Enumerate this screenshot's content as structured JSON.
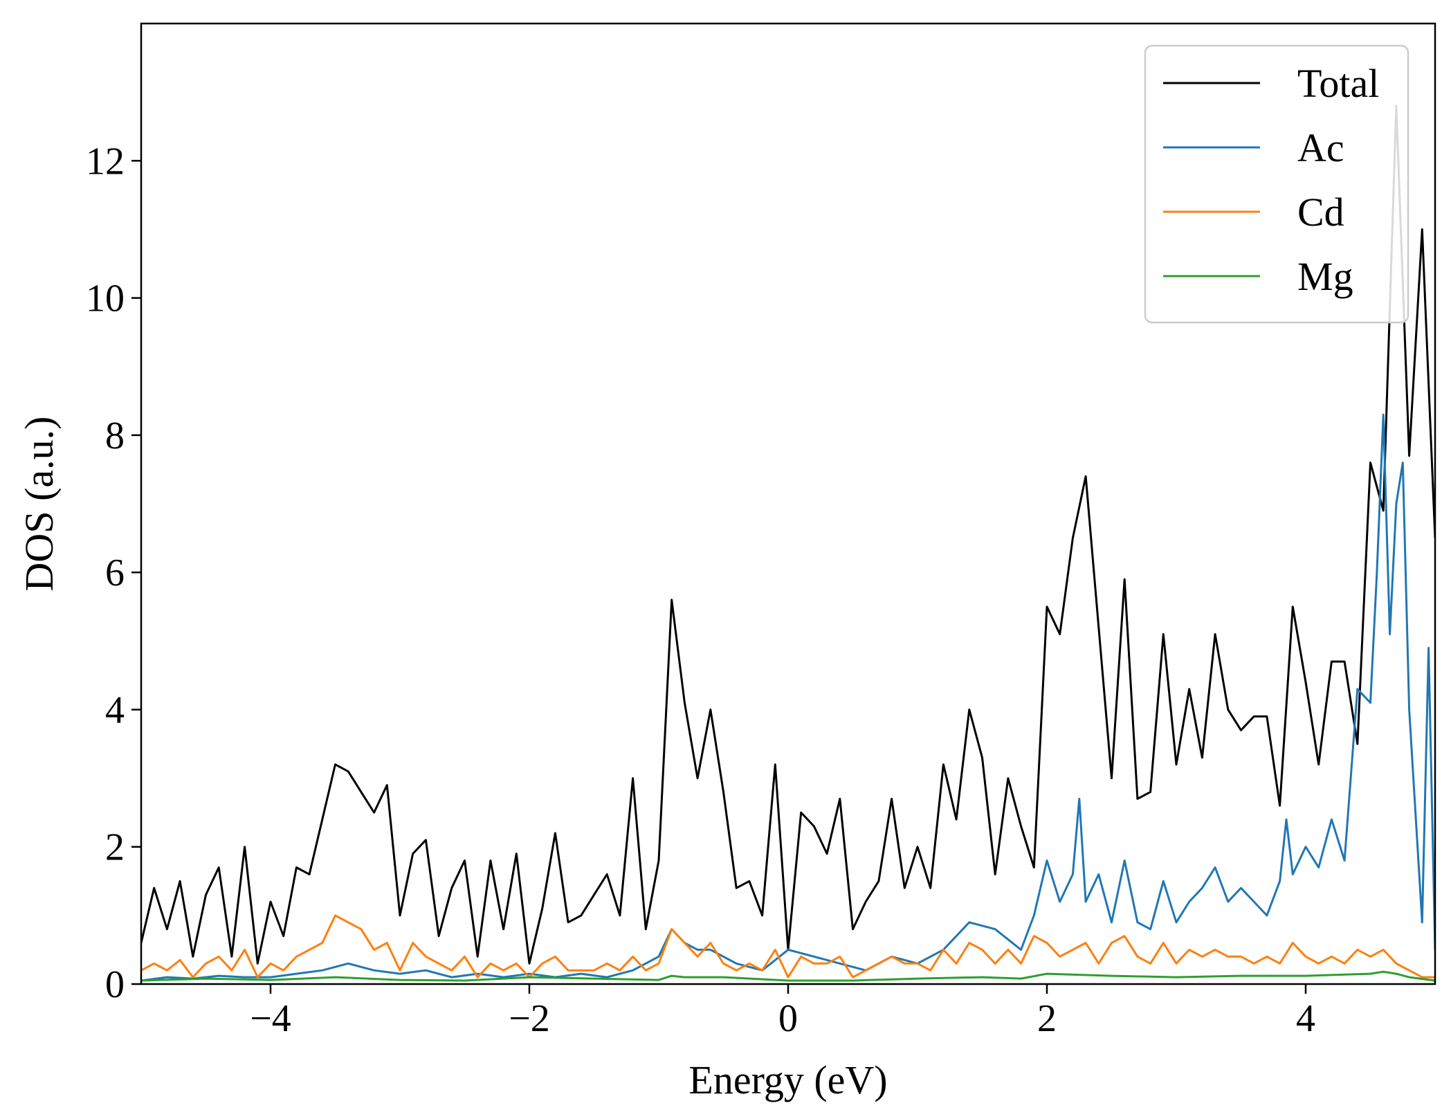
{
  "chart_data": {
    "type": "line",
    "title": "",
    "xlabel": "Energy (eV)",
    "ylabel": "DOS (a.u.)",
    "xlim": [
      -5,
      5
    ],
    "ylim": [
      0,
      14
    ],
    "x_ticks": [
      -4,
      -2,
      0,
      2,
      4
    ],
    "x_tick_labels": [
      "−4",
      "−2",
      "0",
      "2",
      "4"
    ],
    "y_ticks": [
      0,
      2,
      4,
      6,
      8,
      10,
      12
    ],
    "y_tick_labels": [
      "0",
      "2",
      "4",
      "6",
      "8",
      "10",
      "12"
    ],
    "legend_position": "top-right",
    "series": [
      {
        "name": "Total",
        "color": "#000000",
        "x": [
          -5.0,
          -4.9,
          -4.8,
          -4.7,
          -4.6,
          -4.5,
          -4.4,
          -4.3,
          -4.2,
          -4.1,
          -4.0,
          -3.9,
          -3.8,
          -3.7,
          -3.6,
          -3.5,
          -3.4,
          -3.3,
          -3.2,
          -3.1,
          -3.0,
          -2.9,
          -2.8,
          -2.7,
          -2.6,
          -2.5,
          -2.4,
          -2.3,
          -2.2,
          -2.1,
          -2.0,
          -1.9,
          -1.8,
          -1.7,
          -1.6,
          -1.5,
          -1.4,
          -1.3,
          -1.2,
          -1.1,
          -1.0,
          -0.9,
          -0.8,
          -0.7,
          -0.6,
          -0.5,
          -0.4,
          -0.3,
          -0.2,
          -0.1,
          0.0,
          0.1,
          0.2,
          0.3,
          0.4,
          0.5,
          0.6,
          0.7,
          0.8,
          0.9,
          1.0,
          1.1,
          1.2,
          1.3,
          1.4,
          1.5,
          1.6,
          1.7,
          1.8,
          1.9,
          2.0,
          2.1,
          2.2,
          2.3,
          2.4,
          2.5,
          2.6,
          2.7,
          2.8,
          2.9,
          3.0,
          3.1,
          3.2,
          3.3,
          3.4,
          3.5,
          3.6,
          3.7,
          3.8,
          3.9,
          4.0,
          4.1,
          4.2,
          4.3,
          4.4,
          4.5,
          4.6,
          4.7,
          4.8,
          4.9,
          5.0
        ],
        "values": [
          0.6,
          1.4,
          0.8,
          1.5,
          0.4,
          1.3,
          1.7,
          0.4,
          2.0,
          0.3,
          1.2,
          0.7,
          1.7,
          1.6,
          2.4,
          3.2,
          3.1,
          2.8,
          2.5,
          2.9,
          1.0,
          1.9,
          2.1,
          0.7,
          1.4,
          1.8,
          0.4,
          1.8,
          0.8,
          1.9,
          0.3,
          1.1,
          2.2,
          0.9,
          1.0,
          1.3,
          1.6,
          1.0,
          3.0,
          0.8,
          1.8,
          5.6,
          4.1,
          3.0,
          4.0,
          2.8,
          1.4,
          1.5,
          1.0,
          3.2,
          0.5,
          2.5,
          2.3,
          1.9,
          2.7,
          0.8,
          1.2,
          1.5,
          2.7,
          1.4,
          2.0,
          1.4,
          3.2,
          2.4,
          4.0,
          3.3,
          1.6,
          3.0,
          2.3,
          1.7,
          5.5,
          5.1,
          6.5,
          7.4,
          5.2,
          3.0,
          5.9,
          2.7,
          2.8,
          5.1,
          3.2,
          4.3,
          3.3,
          5.1,
          4.0,
          3.7,
          3.9,
          3.9,
          2.6,
          5.5,
          4.4,
          3.2,
          4.7,
          4.7,
          3.5,
          7.6,
          6.9,
          12.8,
          7.7,
          11.0,
          6.5
        ]
      },
      {
        "name": "Ac",
        "color": "#1f77b4",
        "x": [
          -5.0,
          -4.8,
          -4.6,
          -4.4,
          -4.2,
          -4.0,
          -3.8,
          -3.6,
          -3.4,
          -3.2,
          -3.0,
          -2.8,
          -2.6,
          -2.4,
          -2.2,
          -2.0,
          -1.8,
          -1.6,
          -1.4,
          -1.2,
          -1.0,
          -0.9,
          -0.8,
          -0.7,
          -0.6,
          -0.4,
          -0.2,
          0.0,
          0.2,
          0.4,
          0.6,
          0.8,
          1.0,
          1.2,
          1.4,
          1.6,
          1.8,
          1.9,
          2.0,
          2.1,
          2.2,
          2.25,
          2.3,
          2.4,
          2.5,
          2.6,
          2.7,
          2.8,
          2.9,
          3.0,
          3.1,
          3.2,
          3.3,
          3.4,
          3.5,
          3.6,
          3.7,
          3.8,
          3.85,
          3.9,
          4.0,
          4.1,
          4.2,
          4.3,
          4.4,
          4.5,
          4.55,
          4.6,
          4.65,
          4.7,
          4.75,
          4.8,
          4.9,
          4.95,
          5.0
        ],
        "values": [
          0.05,
          0.1,
          0.08,
          0.12,
          0.1,
          0.1,
          0.15,
          0.2,
          0.3,
          0.2,
          0.15,
          0.2,
          0.1,
          0.15,
          0.1,
          0.15,
          0.1,
          0.15,
          0.1,
          0.2,
          0.4,
          0.8,
          0.6,
          0.5,
          0.5,
          0.3,
          0.2,
          0.5,
          0.4,
          0.3,
          0.2,
          0.4,
          0.3,
          0.5,
          0.9,
          0.8,
          0.5,
          1.0,
          1.8,
          1.2,
          1.6,
          2.7,
          1.2,
          1.6,
          0.9,
          1.8,
          0.9,
          0.8,
          1.5,
          0.9,
          1.2,
          1.4,
          1.7,
          1.2,
          1.4,
          1.2,
          1.0,
          1.5,
          2.4,
          1.6,
          2.0,
          1.7,
          2.4,
          1.8,
          4.3,
          4.1,
          6.0,
          8.3,
          5.1,
          7.0,
          7.6,
          4.0,
          0.9,
          4.9,
          0.5
        ]
      },
      {
        "name": "Cd",
        "color": "#ff7f0e",
        "x": [
          -5.0,
          -4.9,
          -4.8,
          -4.7,
          -4.6,
          -4.5,
          -4.4,
          -4.3,
          -4.2,
          -4.1,
          -4.0,
          -3.9,
          -3.8,
          -3.7,
          -3.6,
          -3.5,
          -3.4,
          -3.3,
          -3.2,
          -3.1,
          -3.0,
          -2.9,
          -2.8,
          -2.7,
          -2.6,
          -2.5,
          -2.4,
          -2.3,
          -2.2,
          -2.1,
          -2.0,
          -1.9,
          -1.8,
          -1.7,
          -1.6,
          -1.5,
          -1.4,
          -1.3,
          -1.2,
          -1.1,
          -1.0,
          -0.9,
          -0.8,
          -0.7,
          -0.6,
          -0.5,
          -0.4,
          -0.3,
          -0.2,
          -0.1,
          0.0,
          0.1,
          0.2,
          0.3,
          0.4,
          0.5,
          0.6,
          0.7,
          0.8,
          0.9,
          1.0,
          1.1,
          1.2,
          1.3,
          1.4,
          1.5,
          1.6,
          1.7,
          1.8,
          1.9,
          2.0,
          2.1,
          2.2,
          2.3,
          2.4,
          2.5,
          2.6,
          2.7,
          2.8,
          2.9,
          3.0,
          3.1,
          3.2,
          3.3,
          3.4,
          3.5,
          3.6,
          3.7,
          3.8,
          3.9,
          4.0,
          4.1,
          4.2,
          4.3,
          4.4,
          4.5,
          4.6,
          4.7,
          4.8,
          4.9,
          5.0
        ],
        "values": [
          0.2,
          0.3,
          0.2,
          0.35,
          0.1,
          0.3,
          0.4,
          0.2,
          0.5,
          0.1,
          0.3,
          0.2,
          0.4,
          0.5,
          0.6,
          1.0,
          0.9,
          0.8,
          0.5,
          0.6,
          0.2,
          0.6,
          0.4,
          0.3,
          0.2,
          0.4,
          0.1,
          0.3,
          0.2,
          0.3,
          0.1,
          0.3,
          0.4,
          0.2,
          0.2,
          0.2,
          0.3,
          0.2,
          0.4,
          0.2,
          0.3,
          0.8,
          0.6,
          0.4,
          0.6,
          0.3,
          0.2,
          0.3,
          0.2,
          0.5,
          0.1,
          0.4,
          0.3,
          0.3,
          0.4,
          0.1,
          0.2,
          0.3,
          0.4,
          0.3,
          0.3,
          0.2,
          0.5,
          0.3,
          0.6,
          0.5,
          0.3,
          0.5,
          0.3,
          0.7,
          0.6,
          0.4,
          0.5,
          0.6,
          0.3,
          0.6,
          0.7,
          0.4,
          0.3,
          0.6,
          0.3,
          0.5,
          0.4,
          0.5,
          0.4,
          0.4,
          0.3,
          0.4,
          0.3,
          0.6,
          0.4,
          0.3,
          0.4,
          0.3,
          0.5,
          0.4,
          0.5,
          0.3,
          0.2,
          0.1,
          0.1
        ]
      },
      {
        "name": "Mg",
        "color": "#2ca02c",
        "x": [
          -5.0,
          -4.5,
          -4.0,
          -3.5,
          -3.0,
          -2.5,
          -2.0,
          -1.5,
          -1.0,
          -0.9,
          -0.8,
          -0.5,
          0.0,
          0.5,
          1.0,
          1.5,
          1.8,
          2.0,
          2.5,
          3.0,
          3.5,
          4.0,
          4.5,
          4.6,
          4.7,
          4.8,
          5.0
        ],
        "values": [
          0.05,
          0.08,
          0.06,
          0.1,
          0.06,
          0.05,
          0.1,
          0.08,
          0.06,
          0.12,
          0.1,
          0.1,
          0.05,
          0.05,
          0.08,
          0.1,
          0.08,
          0.15,
          0.12,
          0.1,
          0.12,
          0.12,
          0.15,
          0.18,
          0.15,
          0.1,
          0.05
        ]
      }
    ]
  }
}
